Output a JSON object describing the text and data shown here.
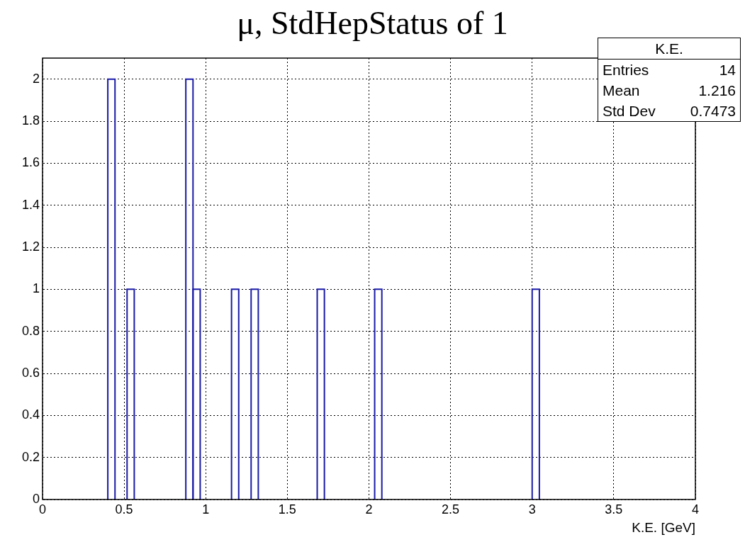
{
  "chart_data": {
    "type": "histogram",
    "title": "μ, StdHepStatus of 1",
    "xlabel": "K.E. [GeV]",
    "bins": [
      0.4,
      0.444,
      0.518,
      0.562,
      0.878,
      0.922,
      0.966,
      1.158,
      1.202,
      1.278,
      1.322,
      1.683,
      1.727,
      2.035,
      2.079,
      3.0,
      3.044
    ],
    "values": [
      2,
      0,
      1,
      0,
      2,
      1,
      0,
      1,
      0,
      1,
      0,
      1,
      0,
      1,
      0,
      1
    ],
    "color": "#1a1aa8",
    "xlim": [
      0,
      4
    ],
    "xticks": [
      0,
      0.5,
      1,
      1.5,
      2,
      2.5,
      3,
      3.5,
      4
    ],
    "ylim": [
      0,
      2.1
    ],
    "yticks": [
      0,
      0.2,
      0.4,
      0.6,
      0.8,
      1,
      1.2,
      1.4,
      1.6,
      1.8,
      2
    ],
    "grid": true,
    "legend": false,
    "annotations": [
      "K.E.",
      "Entries",
      "14",
      "Mean",
      "1.216",
      "Std Dev",
      "0.7473"
    ]
  }
}
